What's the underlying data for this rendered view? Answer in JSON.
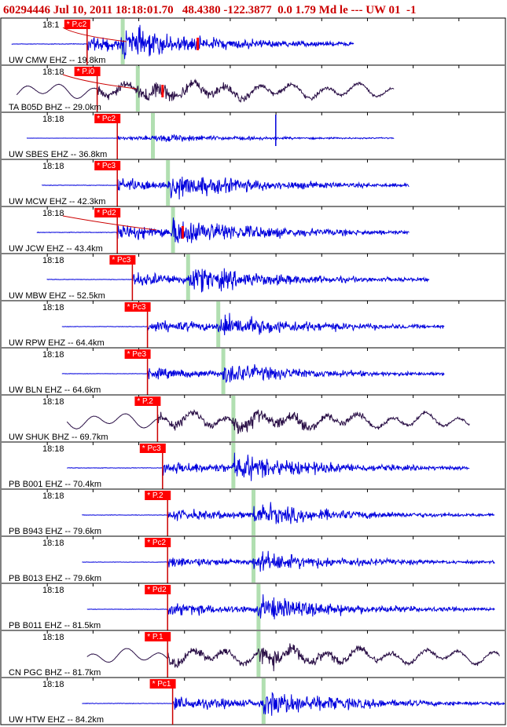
{
  "header": {
    "text": "60294446 Jul 10, 2011 18:18:01.70   48.4380 -122.3877  0.0 1.79 Md le --- UW 01  -1"
  },
  "colors": {
    "trace_short_period": "#0000dd",
    "trace_broadband": "#2a0f46",
    "pick_box": "#ff0000",
    "pick_text": "#ffffff",
    "s_marker": "#a8dca8",
    "frame": "#000000",
    "header": "#cc0000"
  },
  "chart_data": {
    "type": "seismogram",
    "time_label": "18:18",
    "panels": [
      {
        "station": "UW CMW EHZ -- 19.8km",
        "time_label": "18:1",
        "pick": "* P.c2",
        "kind": "EHZ",
        "t_start": 0.02,
        "t_p": 0.17,
        "t_s": 0.24,
        "t_end": 0.7,
        "amp": 0.85,
        "curve": true,
        "red_marks": [
          0.39
        ]
      },
      {
        "station": "TA B05D BHZ -- 29.0km",
        "time_label": "18:18",
        "pick": "* P.i0",
        "kind": "BHZ",
        "t_start": 0.03,
        "t_p": 0.19,
        "t_s": 0.27,
        "t_end": 0.78,
        "amp": 0.55,
        "curve": true,
        "red_marks": [
          0.32
        ]
      },
      {
        "station": "UW SBES EHZ -- 36.8km",
        "time_label": "18:18",
        "pick": "* Pc2",
        "kind": "EHZ",
        "t_start": 0.05,
        "t_p": 0.23,
        "t_s": 0.3,
        "t_end": 0.78,
        "amp": 0.25,
        "spike": 0.545
      },
      {
        "station": "UW MCW EHZ -- 42.3km",
        "time_label": "18:18",
        "pick": "* Pc3",
        "kind": "EHZ",
        "t_start": 0.08,
        "t_p": 0.23,
        "t_s": 0.33,
        "t_end": 0.81,
        "amp": 0.75
      },
      {
        "station": "UW JCW EHZ -- 43.4km",
        "time_label": "18:18",
        "pick": "* Pd2",
        "kind": "EHZ",
        "t_start": 0.07,
        "t_p": 0.23,
        "t_s": 0.34,
        "t_end": 0.81,
        "amp": 0.85,
        "curve": true,
        "red_marks": [
          0.36
        ]
      },
      {
        "station": "UW MBW EHZ -- 52.5km",
        "time_label": "18:18",
        "pick": "* Pc3",
        "kind": "EHZ",
        "t_start": 0.09,
        "t_p": 0.26,
        "t_s": 0.37,
        "t_end": 0.85,
        "amp": 0.75
      },
      {
        "station": "UW RPW EHZ -- 64.4km",
        "time_label": "18:18",
        "pick": "* Pc3",
        "kind": "EHZ",
        "t_start": 0.12,
        "t_p": 0.29,
        "t_s": 0.43,
        "t_end": 0.88,
        "amp": 0.7
      },
      {
        "station": "UW BLN EHZ -- 64.6km",
        "time_label": "18:18",
        "pick": "* Pe3",
        "kind": "EHZ",
        "t_start": 0.12,
        "t_p": 0.29,
        "t_s": 0.44,
        "t_end": 0.88,
        "amp": 0.6
      },
      {
        "station": "UW SHUK BHZ -- 69.7km",
        "time_label": "18:18",
        "pick": "* P.2",
        "kind": "BHZ",
        "t_start": 0.13,
        "t_p": 0.31,
        "t_s": 0.46,
        "t_end": 0.93,
        "amp": 0.55
      },
      {
        "station": "PB B001 EHZ -- 70.4km",
        "time_label": "18:18",
        "pick": "* Pc3",
        "kind": "EHZ",
        "t_start": 0.13,
        "t_p": 0.32,
        "t_s": 0.46,
        "t_end": 0.93,
        "amp": 0.75
      },
      {
        "station": "PB B943 EHZ -- 79.6km",
        "time_label": "18:18",
        "pick": "* P.2",
        "kind": "EHZ",
        "t_start": 0.16,
        "t_p": 0.33,
        "t_s": 0.5,
        "t_end": 0.98,
        "amp": 0.65
      },
      {
        "station": "PB B013 EHZ -- 79.6km",
        "time_label": "18:18",
        "pick": "* Pc2",
        "kind": "EHZ",
        "t_start": 0.16,
        "t_p": 0.33,
        "t_s": 0.5,
        "t_end": 0.98,
        "amp": 0.6
      },
      {
        "station": "PB B011 EHZ -- 81.5km",
        "time_label": "18:18",
        "pick": "* Pd2",
        "kind": "EHZ",
        "t_start": 0.17,
        "t_p": 0.33,
        "t_s": 0.51,
        "t_end": 0.98,
        "amp": 0.7
      },
      {
        "station": "CN PGC BHZ -- 81.7km",
        "time_label": "18:18",
        "pick": "* P.1",
        "kind": "BHZ",
        "t_start": 0.17,
        "t_p": 0.33,
        "t_s": 0.51,
        "t_end": 0.99,
        "amp": 0.55
      },
      {
        "station": "UW HTW EHZ -- 84.2km",
        "time_label": "18:18",
        "pick": "* Pc1",
        "kind": "EHZ",
        "t_start": 0.16,
        "t_p": 0.34,
        "t_s": 0.52,
        "t_end": 1.0,
        "amp": 0.75
      }
    ]
  }
}
